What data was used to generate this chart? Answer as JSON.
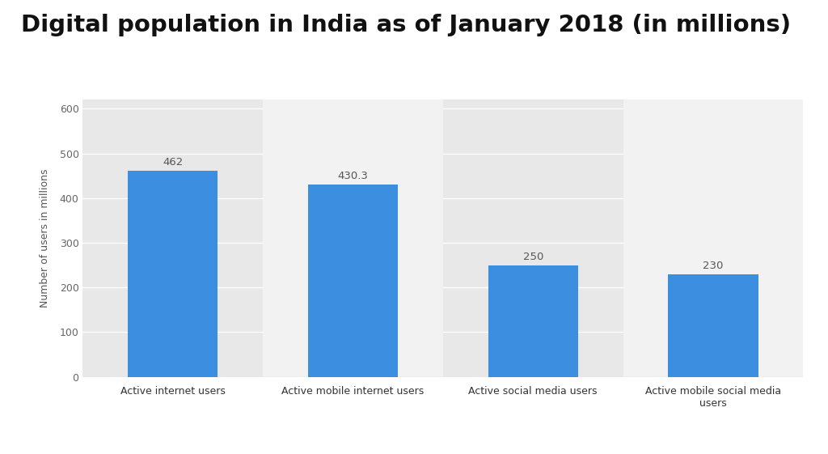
{
  "title": "Digital population in India as of January 2018 (in millions)",
  "categories": [
    "Active internet users",
    "Active mobile internet users",
    "Active social media users",
    "Active mobile social media\nusers"
  ],
  "values": [
    462,
    430.3,
    250,
    230
  ],
  "bar_color": "#3c8fe0",
  "ylabel": "Number of users in millions",
  "ylim": [
    0,
    620
  ],
  "yticks": [
    0,
    100,
    200,
    300,
    400,
    500,
    600
  ],
  "background_color": "#ffffff",
  "plot_bg_color": "#e8e8e8",
  "col_highlight_color": "#f2f2f2",
  "title_fontsize": 21,
  "title_fontweight": "bold",
  "label_fontsize": 9,
  "bar_label_fontsize": 9.5,
  "ylabel_fontsize": 9,
  "grid_color": "#ffffff",
  "bar_width": 0.5
}
